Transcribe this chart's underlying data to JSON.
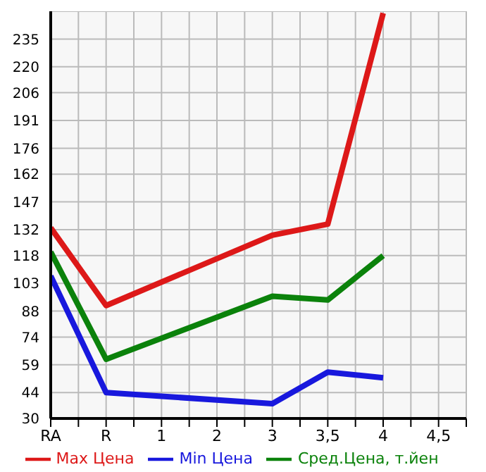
{
  "chart_data": {
    "type": "line",
    "categories": [
      "RA",
      "R",
      "1",
      "2",
      "3",
      "3,5",
      "4",
      "4,5"
    ],
    "series": [
      {
        "name": "Max Цена",
        "color": "#dd1818",
        "values": [
          133,
          91,
          null,
          null,
          129,
          135,
          249,
          null
        ]
      },
      {
        "name": "Min Цена",
        "color": "#1818dd",
        "values": [
          107,
          44,
          null,
          null,
          38,
          55,
          52,
          null
        ]
      },
      {
        "name": "Сред.Цена, т.йен",
        "color": "#0b820b",
        "values": [
          120,
          62,
          null,
          null,
          96,
          94,
          118,
          null
        ]
      }
    ],
    "ylim": [
      30,
      250
    ],
    "yticks": [
      30,
      44,
      59,
      74,
      88,
      103,
      118,
      132,
      147,
      162,
      176,
      191,
      206,
      220,
      235
    ],
    "grid": true,
    "legend": "bottom",
    "marker": "none",
    "line_style": "solid"
  }
}
